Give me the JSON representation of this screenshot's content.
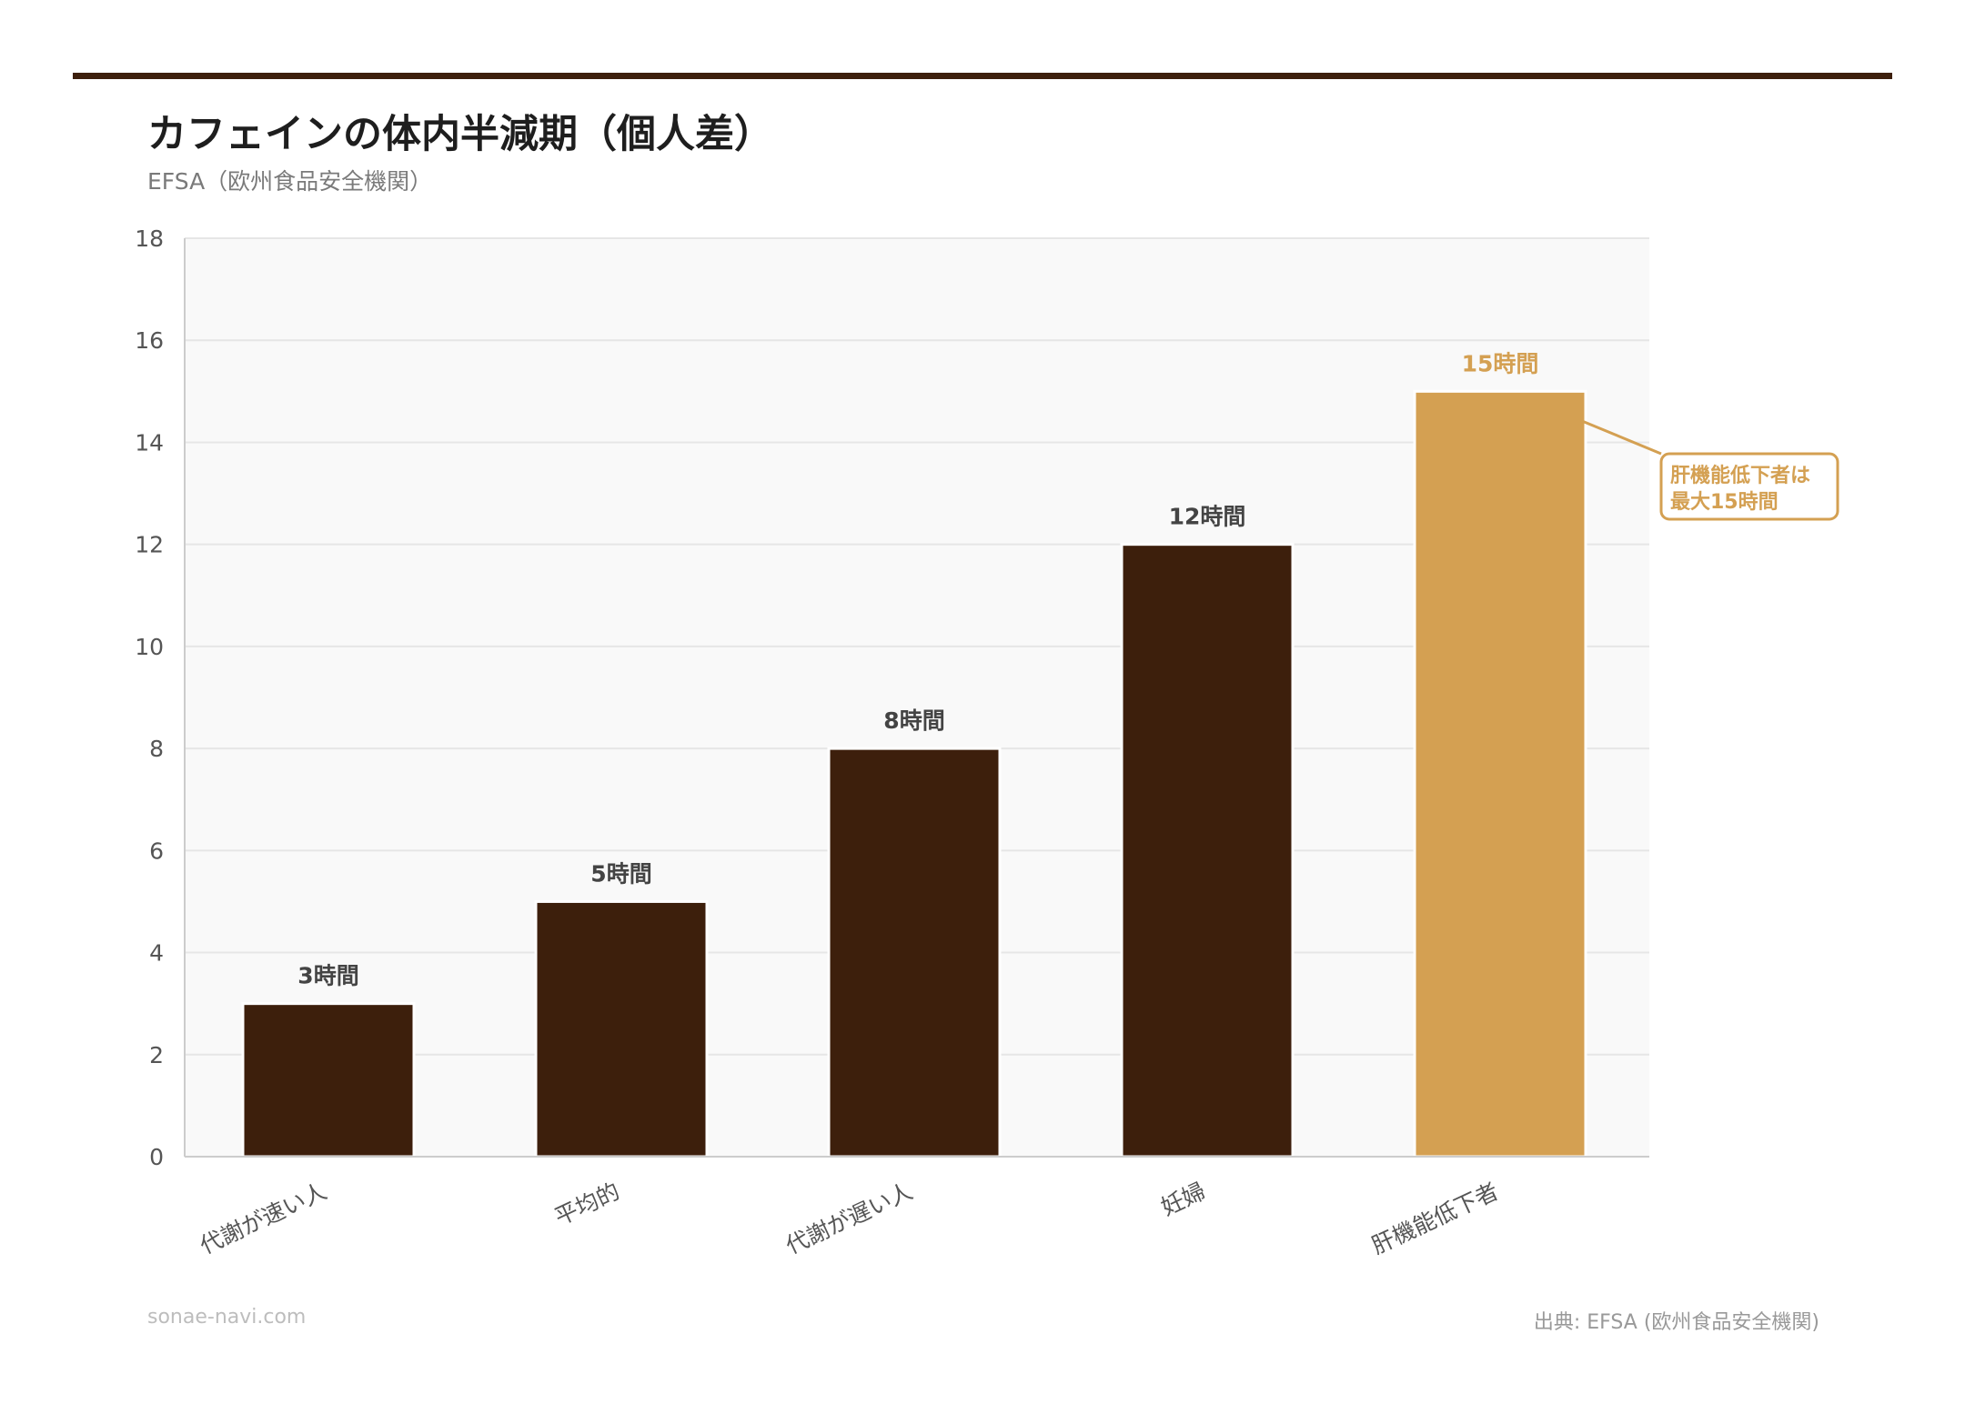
{
  "header": {
    "title": "カフェインの体内半減期（個人差）",
    "subtitle": "EFSA（欧州食品安全機関）"
  },
  "footer": {
    "site": "sonae-navi.com",
    "source": "出典: EFSA (欧州食品安全機関)"
  },
  "colors": {
    "accent_dark": "#3d1f0c",
    "highlight_gold": "#d4a052",
    "plot_bg": "#f9f9f9",
    "grid": "#e6e6e6",
    "axis": "#cccccc",
    "label_text": "#444444",
    "tick_text": "#555555"
  },
  "annotation": {
    "line1": "肝機能低下者は",
    "line2": "最大15時間"
  },
  "chart_data": {
    "type": "bar",
    "title": "カフェインの体内半減期（個人差）",
    "subtitle": "EFSA（欧州食品安全機関）",
    "xlabel": "",
    "ylabel": "",
    "ylim": [
      0,
      18
    ],
    "yticks": [
      0,
      2,
      4,
      6,
      8,
      10,
      12,
      14,
      16,
      18
    ],
    "grid": true,
    "legend": null,
    "categories": [
      "代謝が速い人",
      "平均的",
      "代謝が遅い人",
      "妊婦",
      "肝機能低下者"
    ],
    "values": [
      3,
      5,
      8,
      12,
      15
    ],
    "value_labels": [
      "3時間",
      "5時間",
      "8時間",
      "12時間",
      "15時間"
    ],
    "highlighted_index": 4,
    "annotations": [
      {
        "target": "肝機能低下者",
        "text": "肝機能低下者は最大15時間"
      }
    ]
  }
}
